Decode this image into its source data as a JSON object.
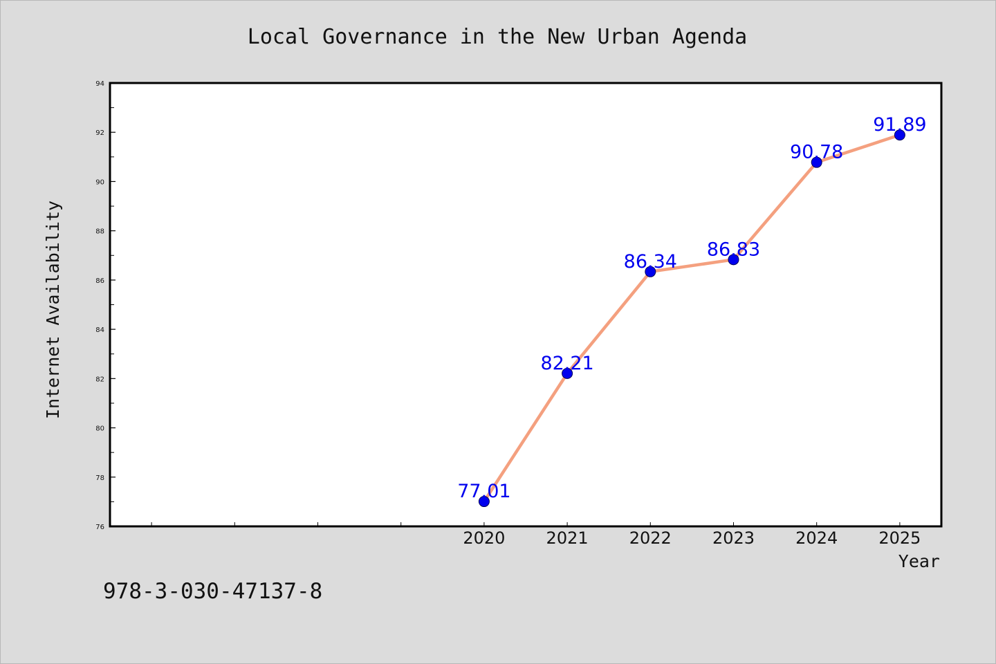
{
  "footnote": "978-3-030-47137-8",
  "colors": {
    "line": "#f4a07f",
    "marker": "#0000ee",
    "label": "#0000ee",
    "background": "#dcdcdc",
    "plot_background": "#ffffff"
  },
  "chart_data": {
    "type": "line",
    "title": "Local Governance in the New Urban Agenda",
    "xlabel": "Year",
    "ylabel": "Internet Availability",
    "x": [
      2020,
      2021,
      2022,
      2023,
      2024,
      2025
    ],
    "xlim": [
      2015.5,
      2025.5
    ],
    "xtick_labels": [
      "2020",
      "2021",
      "2022",
      "2023",
      "2024",
      "2025"
    ],
    "ylim": [
      76,
      94
    ],
    "yticks": [
      76,
      78,
      80,
      82,
      84,
      86,
      88,
      90,
      92,
      94
    ],
    "grid": false,
    "series": [
      {
        "values": [
          77.01,
          82.21,
          86.34,
          86.83,
          90.78,
          91.89
        ],
        "labels": [
          "77.01",
          "82.21",
          "86.34",
          "86.83",
          "90.78",
          "91.89"
        ]
      }
    ]
  }
}
